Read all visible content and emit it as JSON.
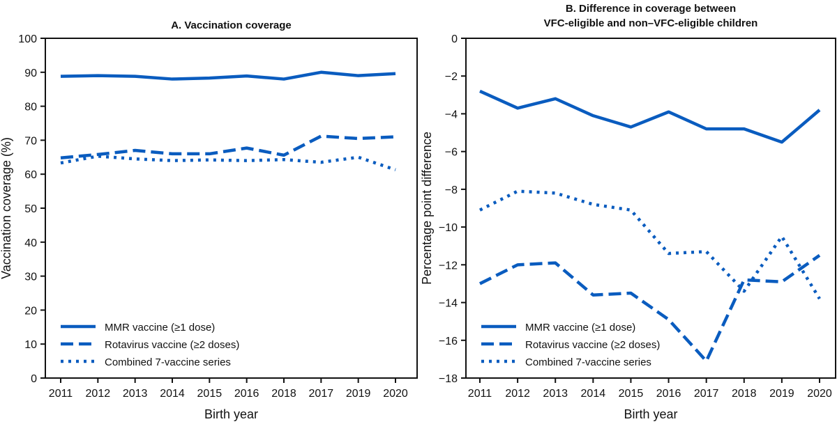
{
  "chart_data": [
    {
      "type": "line",
      "title": "A. Vaccination coverage",
      "xlabel": "Birth year",
      "ylabel": "Vaccination coverage (%)",
      "categories": [
        "2011",
        "2012",
        "2013",
        "2014",
        "2015",
        "2016",
        "2018",
        "2017",
        "2019",
        "2020"
      ],
      "ylim": [
        0,
        100
      ],
      "yticks": [
        0,
        10,
        20,
        30,
        40,
        50,
        60,
        70,
        80,
        90,
        100
      ],
      "grid": false,
      "legend_position": "bottom-left",
      "series": [
        {
          "name": "MMR vaccine (≥1 dose)",
          "style": "solid",
          "values": [
            88.8,
            89.0,
            88.8,
            88.0,
            88.3,
            88.9,
            88.0,
            90.0,
            89.0,
            89.6
          ]
        },
        {
          "name": "Rotavirus vaccine (≥2 doses)",
          "style": "dashed",
          "values": [
            64.8,
            65.8,
            67.0,
            66.0,
            66.0,
            67.7,
            65.6,
            71.2,
            70.5,
            71.0
          ]
        },
        {
          "name": "Combined 7-vaccine series",
          "style": "dotted",
          "values": [
            63.3,
            65.3,
            64.5,
            64.0,
            64.2,
            64.0,
            64.3,
            63.5,
            65.0,
            61.3
          ]
        }
      ]
    },
    {
      "type": "line",
      "title": "B. Difference in coverage between VFC-eligible and non–VFC-eligible children",
      "title_lines": [
        "B. Difference in coverage between",
        "VFC-eligible and non–VFC-eligible children"
      ],
      "xlabel": "Birth year",
      "ylabel": "Percentage point difference",
      "categories": [
        "2011",
        "2012",
        "2013",
        "2014",
        "2015",
        "2016",
        "2017",
        "2018",
        "2019",
        "2020"
      ],
      "ylim": [
        -18,
        0
      ],
      "yticks": [
        -18,
        -16,
        -14,
        -12,
        -10,
        -8,
        -6,
        -4,
        -2,
        0
      ],
      "grid": false,
      "legend_position": "bottom-left",
      "series": [
        {
          "name": "MMR vaccine (≥1 dose)",
          "style": "solid",
          "values": [
            -2.8,
            -3.7,
            -3.2,
            -4.1,
            -4.7,
            -3.9,
            -4.8,
            -4.8,
            -5.5,
            -3.8
          ]
        },
        {
          "name": "Rotavirus vaccine (≥2 doses)",
          "style": "dashed",
          "values": [
            -13.0,
            -12.0,
            -11.9,
            -13.6,
            -13.5,
            -14.9,
            -17.1,
            -12.8,
            -12.9,
            -11.5
          ]
        },
        {
          "name": "Combined 7-vaccine series",
          "style": "dotted",
          "values": [
            -9.1,
            -8.1,
            -8.2,
            -8.8,
            -9.1,
            -11.4,
            -11.3,
            -13.4,
            -10.5,
            -13.8
          ]
        }
      ]
    }
  ],
  "colors": {
    "series": "#0a5cbf",
    "axis": "#111111"
  }
}
